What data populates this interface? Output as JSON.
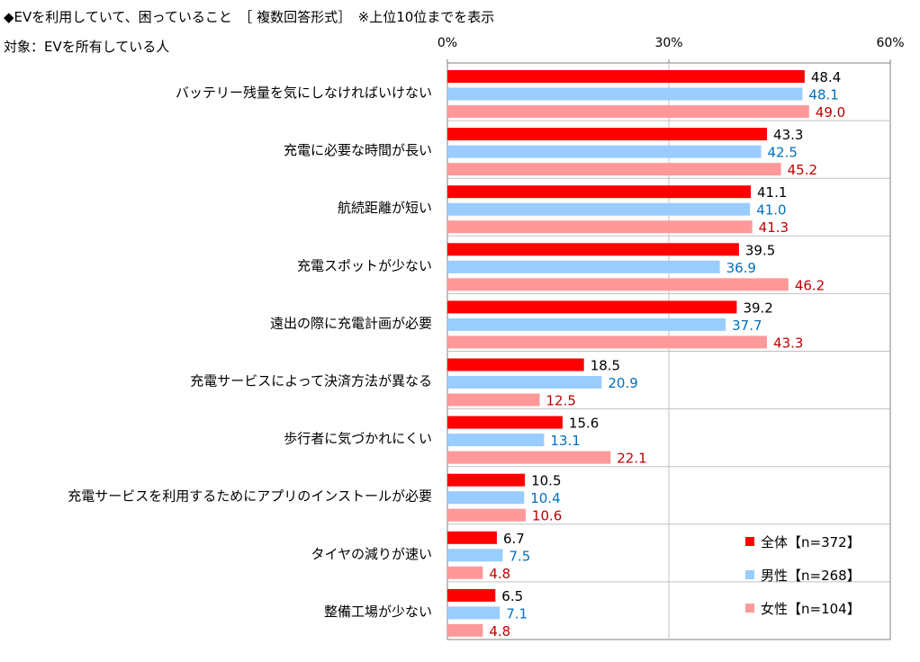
{
  "header": {
    "title": "◆EVを利用していて、困っていること　［ 複数回答形式］　※上位10位までを表示",
    "target": "対象：EVを所有している人"
  },
  "colors": {
    "all": "#ff0000",
    "male": "#99ccff",
    "female": "#ff9999",
    "male_label": "#0070c0",
    "female_label": "#c00000",
    "grid": "#c0c0c0",
    "axis": "#808080"
  },
  "chart_data": {
    "type": "bar",
    "orientation": "horizontal",
    "categories": [
      "バッテリー残量を気にしなければいけない",
      "充電に必要な時間が長い",
      "航続距離が短い",
      "充電スポットが少ない",
      "遠出の際に充電計画が必要",
      "充電サービスによって決済方法が異なる",
      "歩行者に気づかれにくい",
      "充電サービスを利用するためにアプリのインストールが必要",
      "タイヤの減りが速い",
      "整備工場が少ない"
    ],
    "series": [
      {
        "name": "全体【n=372】",
        "values": [
          48.4,
          43.3,
          41.1,
          39.5,
          39.2,
          18.5,
          15.6,
          10.5,
          6.7,
          6.5
        ]
      },
      {
        "name": "男性【n=268】",
        "values": [
          48.1,
          42.5,
          41.0,
          36.9,
          37.7,
          20.9,
          13.1,
          10.4,
          7.5,
          7.1
        ]
      },
      {
        "name": "女性【n=104】",
        "values": [
          49.0,
          45.2,
          41.3,
          46.2,
          43.3,
          12.5,
          22.1,
          10.6,
          4.8,
          4.8
        ]
      }
    ],
    "xlim": [
      0,
      60
    ],
    "xticks": [
      "0%",
      "30%",
      "60%"
    ],
    "grid": true,
    "legend_position": "bottom-right"
  }
}
